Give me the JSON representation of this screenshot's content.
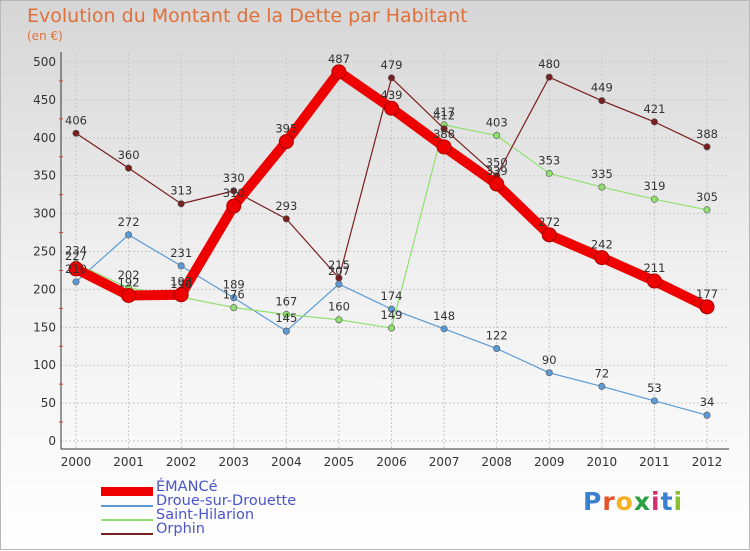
{
  "header": {
    "title": "Evolution du Montant de la Dette par Habitant",
    "subtitle": "(en €)"
  },
  "logo": {
    "text": "Proxiti",
    "colors": [
      "#3a7fd0",
      "#e8502a",
      "#f4b020",
      "#2aa040",
      "#d03070",
      "#3a7fd0",
      "#8ac030"
    ]
  },
  "chart_data": {
    "type": "line",
    "title": "Evolution du Montant de la Dette par Habitant",
    "subtitle": "(en €)",
    "x": [
      2000,
      2001,
      2002,
      2003,
      2004,
      2005,
      2006,
      2007,
      2008,
      2009,
      2010,
      2011,
      2012
    ],
    "ylim": [
      0,
      500
    ],
    "yticks": [
      0,
      50,
      100,
      150,
      200,
      250,
      300,
      350,
      400,
      450,
      500
    ],
    "grid": true,
    "legend_position": "bottom-left",
    "series": [
      {
        "name": "ÉMANCé",
        "color": "#ee0000",
        "values": [
          227,
          192,
          193,
          310,
          395,
          487,
          439,
          388,
          339,
          272,
          242,
          211,
          177
        ]
      },
      {
        "name": "Droue-sur-Drouette",
        "color": "#5b9bd5",
        "values": [
          210,
          272,
          231,
          189,
          145,
          207,
          174,
          148,
          122,
          90,
          72,
          53,
          34
        ]
      },
      {
        "name": "Saint-Hilarion",
        "color": "#90e070",
        "values": [
          234,
          202,
          190,
          176,
          167,
          160,
          149,
          417,
          403,
          353,
          335,
          319,
          305
        ]
      },
      {
        "name": "Orphin",
        "color": "#7a1f1f",
        "values": [
          406,
          360,
          313,
          330,
          293,
          215,
          479,
          412,
          350,
          480,
          449,
          421,
          388
        ]
      }
    ],
    "data_labels": [
      [
        "227",
        "192",
        "193",
        "310",
        "395",
        "487",
        "439",
        "388",
        "339",
        "272",
        "242",
        "211",
        "177"
      ],
      [
        "210",
        "272",
        "231",
        "189",
        "145",
        "207",
        "174",
        "148",
        "122",
        "90",
        "72",
        "53",
        "34"
      ],
      [
        "234",
        "202",
        "190",
        "176",
        "167",
        "160",
        "149",
        "417",
        "403",
        "353",
        "335",
        "319",
        "305"
      ],
      [
        "406",
        "360",
        "313",
        "330",
        "293",
        "215",
        "479",
        "412",
        "350",
        "480",
        "449",
        "421",
        "388"
      ]
    ]
  }
}
